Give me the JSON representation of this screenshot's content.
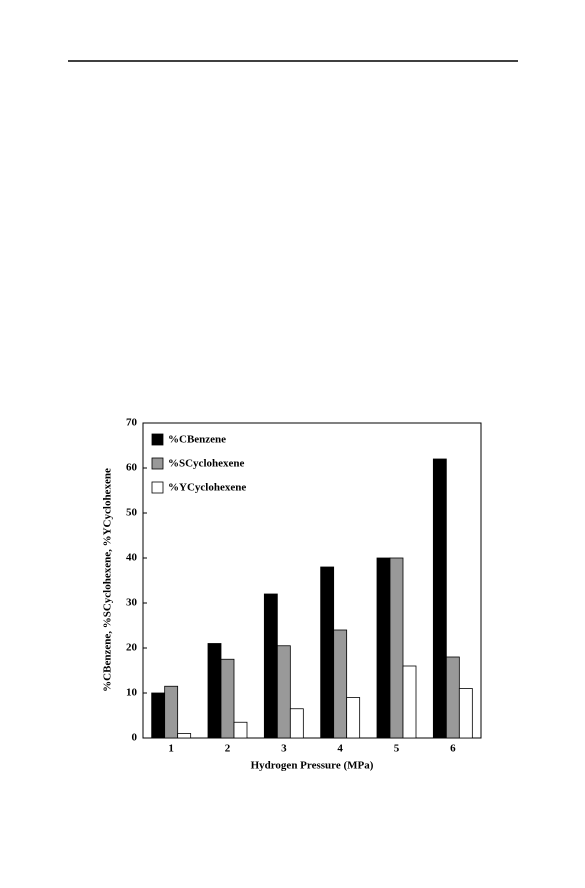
{
  "chart_data": {
    "type": "bar",
    "categories": [
      "1",
      "2",
      "3",
      "4",
      "5",
      "6"
    ],
    "series": [
      {
        "name": "%CBenzene",
        "color": "#000000",
        "values": [
          10,
          21,
          32,
          38,
          40,
          62
        ]
      },
      {
        "name": "%SCyclohexene",
        "color": "#999999",
        "values": [
          11.5,
          17.5,
          20.5,
          24,
          40,
          18
        ]
      },
      {
        "name": "%YCyclohexene",
        "color": "#ffffff",
        "values": [
          1,
          3.5,
          6.5,
          9,
          16,
          11
        ]
      }
    ],
    "x_label": "Hydrogen Pressure (MPa)",
    "y_label": "%CBenzene, %SCyclohexene, %YCyclohexene",
    "ylim": [
      0,
      70
    ],
    "yticks": [
      0,
      10,
      20,
      30,
      40,
      50,
      60,
      70
    ],
    "legend": "upper left",
    "grid": false
  }
}
